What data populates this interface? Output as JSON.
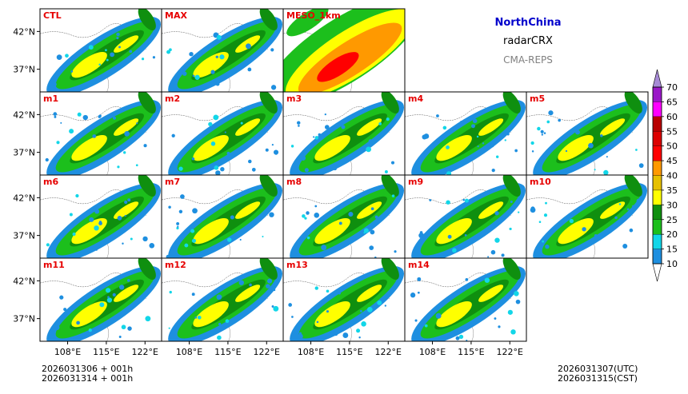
{
  "header": {
    "region": "NorthChina",
    "variable": "radarCRX",
    "model": "CMA-REPS"
  },
  "footer": {
    "init_utc": "2026031306  +  001h",
    "init_cst": "2026031314  +  001h",
    "valid_utc": "2026031307(UTC)",
    "valid_cst": "2026031315(CST)"
  },
  "chart_data": {
    "type": "heatmap",
    "description_variable": "radarCRX",
    "layout_grid": {
      "rows": 4,
      "cols": 5
    },
    "panels": [
      {
        "label": "CTL",
        "row": 0,
        "col": 0
      },
      {
        "label": "MAX",
        "row": 0,
        "col": 1
      },
      {
        "label": "MESO_1km",
        "row": 0,
        "col": 2
      },
      {
        "label": "m1",
        "row": 1,
        "col": 0
      },
      {
        "label": "m2",
        "row": 1,
        "col": 1
      },
      {
        "label": "m3",
        "row": 1,
        "col": 2
      },
      {
        "label": "m4",
        "row": 1,
        "col": 3
      },
      {
        "label": "m5",
        "row": 1,
        "col": 4
      },
      {
        "label": "m6",
        "row": 2,
        "col": 0
      },
      {
        "label": "m7",
        "row": 2,
        "col": 1
      },
      {
        "label": "m8",
        "row": 2,
        "col": 2
      },
      {
        "label": "m9",
        "row": 2,
        "col": 3
      },
      {
        "label": "m10",
        "row": 2,
        "col": 4
      },
      {
        "label": "m11",
        "row": 3,
        "col": 0
      },
      {
        "label": "m12",
        "row": 3,
        "col": 1
      },
      {
        "label": "m13",
        "row": 3,
        "col": 2
      },
      {
        "label": "m14",
        "row": 3,
        "col": 3
      }
    ],
    "x_axis": {
      "ticks": [
        "108°E",
        "115°E",
        "122°E"
      ],
      "tick_values": [
        108,
        115,
        122
      ],
      "range": [
        103,
        125
      ]
    },
    "y_axis": {
      "ticks": [
        "42°N",
        "37°N"
      ],
      "tick_values": [
        42,
        37
      ],
      "range": [
        34,
        45
      ]
    },
    "colorbar": {
      "levels": [
        10,
        15,
        20,
        25,
        30,
        35,
        40,
        45,
        50,
        55,
        60,
        65,
        70
      ],
      "labels": [
        "10",
        "15",
        "20",
        "25",
        "30",
        "35",
        "40",
        "45",
        "50",
        "55",
        "60",
        "65",
        "70"
      ],
      "colors": [
        "#1e8fe0",
        "#12d6e8",
        "#1cbf1c",
        "#0f8f0f",
        "#ffff00",
        "#e6c000",
        "#ff9900",
        "#ff0000",
        "#dd0000",
        "#b80000",
        "#ff00ff",
        "#9a18c8"
      ],
      "extend": "both",
      "under_color": "#ffffff",
      "over_color": "#a78bd6"
    }
  }
}
